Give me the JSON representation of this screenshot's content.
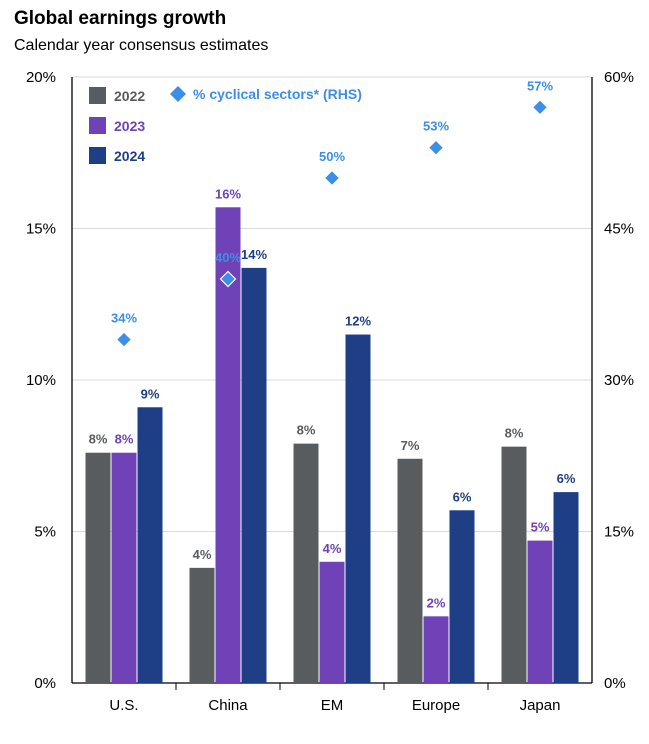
{
  "title": "Global earnings growth",
  "subtitle": "Calendar year consensus estimates",
  "chart_data": {
    "type": "bar",
    "categories": [
      "U.S.",
      "China",
      "EM",
      "Europe",
      "Japan"
    ],
    "series": [
      {
        "name": "2022",
        "color": "#595c5f",
        "values": [
          7.6,
          3.8,
          7.9,
          7.4,
          7.8
        ],
        "labels": [
          "8%",
          "4%",
          "8%",
          "7%",
          "8%"
        ]
      },
      {
        "name": "2023",
        "color": "#6f42b8",
        "values": [
          7.6,
          15.7,
          4.0,
          2.2,
          4.7
        ],
        "labels": [
          "8%",
          "16%",
          "4%",
          "2%",
          "5%"
        ]
      },
      {
        "name": "2024",
        "color": "#1e3f86",
        "values": [
          9.1,
          13.7,
          11.5,
          5.7,
          6.3
        ],
        "labels": [
          "9%",
          "14%",
          "12%",
          "6%",
          "6%"
        ]
      }
    ],
    "rhs_series": {
      "name": "% cyclical sectors* (RHS)",
      "type": "scatter",
      "marker": "diamond",
      "color": "#3c8ee6",
      "values": [
        34,
        40,
        50,
        53,
        57
      ],
      "labels": [
        "34%",
        "40%",
        "50%",
        "53%",
        "57%"
      ]
    },
    "ylim": [
      0,
      20
    ],
    "yticks": [
      "0%",
      "5%",
      "10%",
      "15%",
      "20%"
    ],
    "ylim_right": [
      0,
      60
    ],
    "yticks_right": [
      "0%",
      "15%",
      "30%",
      "45%",
      "60%"
    ],
    "grid": true,
    "legend": "top-left"
  }
}
